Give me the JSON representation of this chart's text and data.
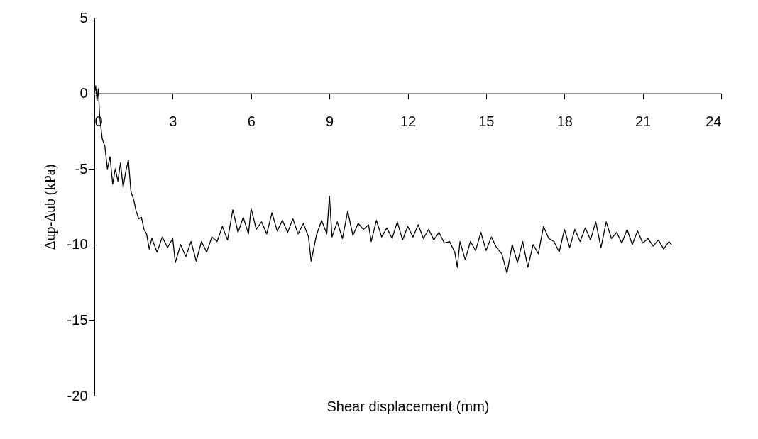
{
  "chart_data": {
    "type": "line",
    "xlabel": "Shear displacement (mm)",
    "ylabel": "Δup-Δub (kPa)",
    "xlim": [
      0,
      24
    ],
    "xticks": [
      0,
      3,
      6,
      9,
      12,
      15,
      18,
      21,
      24
    ],
    "ylim": [
      -20,
      5
    ],
    "yticks": [
      -20,
      -15,
      -10,
      -5,
      0,
      5
    ],
    "grid": false,
    "marker": "none",
    "line_style": "solid",
    "x": [
      0,
      0.05,
      0.1,
      0.15,
      0.2,
      0.3,
      0.4,
      0.5,
      0.6,
      0.7,
      0.8,
      0.9,
      1.0,
      1.1,
      1.2,
      1.3,
      1.4,
      1.5,
      1.6,
      1.7,
      1.8,
      1.9,
      2.0,
      2.1,
      2.2,
      2.4,
      2.6,
      2.8,
      3.0,
      3.1,
      3.3,
      3.5,
      3.7,
      3.9,
      4.1,
      4.3,
      4.5,
      4.7,
      4.9,
      5.1,
      5.3,
      5.5,
      5.7,
      5.9,
      6.0,
      6.2,
      6.4,
      6.6,
      6.8,
      7.0,
      7.2,
      7.4,
      7.6,
      7.8,
      8.0,
      8.2,
      8.3,
      8.5,
      8.7,
      8.9,
      9.0,
      9.1,
      9.3,
      9.5,
      9.7,
      9.9,
      10.1,
      10.3,
      10.5,
      10.6,
      10.8,
      11.0,
      11.2,
      11.4,
      11.6,
      11.8,
      12.0,
      12.2,
      12.4,
      12.6,
      12.8,
      13.0,
      13.2,
      13.4,
      13.6,
      13.8,
      13.9,
      14.0,
      14.2,
      14.4,
      14.6,
      14.8,
      15.0,
      15.2,
      15.4,
      15.6,
      15.8,
      16.0,
      16.2,
      16.4,
      16.6,
      16.8,
      17.0,
      17.2,
      17.4,
      17.6,
      17.8,
      18.0,
      18.2,
      18.4,
      18.6,
      18.8,
      19.0,
      19.2,
      19.4,
      19.6,
      19.8,
      20.0,
      20.2,
      20.4,
      20.6,
      20.8,
      21.0,
      21.2,
      21.4,
      21.6,
      21.8,
      22.0,
      22.1
    ],
    "series": [
      {
        "color": "#000000",
        "values": [
          0,
          0.5,
          -0.5,
          0.3,
          -1.5,
          -3,
          -3.5,
          -5,
          -4.2,
          -6,
          -5,
          -5.8,
          -4.6,
          -6.2,
          -5.2,
          -4.4,
          -6.5,
          -7,
          -7.8,
          -8.3,
          -8.2,
          -9,
          -9.3,
          -10.3,
          -9.6,
          -10.5,
          -9.5,
          -10.2,
          -9.6,
          -11.2,
          -10,
          -10.8,
          -9.8,
          -11.1,
          -9.8,
          -10.5,
          -9.5,
          -9.8,
          -8.8,
          -9.7,
          -7.7,
          -9.2,
          -8.2,
          -9.3,
          -7.6,
          -9.0,
          -8.5,
          -9.3,
          -7.9,
          -9.1,
          -8.4,
          -9.2,
          -8.3,
          -9.3,
          -8.6,
          -9.5,
          -11.1,
          -9.4,
          -8.4,
          -9.3,
          -6.8,
          -9.5,
          -8.5,
          -9.6,
          -7.8,
          -9.4,
          -8.6,
          -9.0,
          -8.7,
          -9.8,
          -8.4,
          -9.5,
          -8.9,
          -9.6,
          -8.5,
          -9.7,
          -8.8,
          -9.5,
          -8.7,
          -9.6,
          -9.0,
          -9.7,
          -9.2,
          -9.9,
          -9.8,
          -10.5,
          -11.5,
          -9.8,
          -11.0,
          -9.8,
          -10.4,
          -9.2,
          -10.4,
          -9.5,
          -10.2,
          -10.6,
          -11.9,
          -10.0,
          -11.2,
          -9.8,
          -11.5,
          -10.0,
          -10.6,
          -8.8,
          -9.6,
          -9.8,
          -10.5,
          -9.0,
          -10.2,
          -9.0,
          -9.8,
          -8.9,
          -9.7,
          -8.5,
          -10.2,
          -8.5,
          -9.6,
          -9.2,
          -9.9,
          -9.0,
          -10.0,
          -9.1,
          -9.9,
          -9.6,
          -10.1,
          -9.7,
          -10.3,
          -9.8,
          -10.0
        ]
      }
    ]
  }
}
